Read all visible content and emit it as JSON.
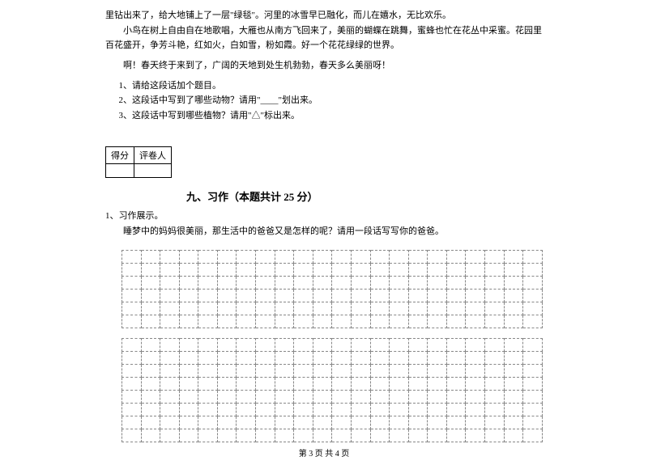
{
  "passage": {
    "line1": "里钻出来了，给大地铺上了一层\"绿毯\"。河里的冰雪早已融化，而儿在嬉水，无比欢乐。",
    "line2": "小鸟在树上自由自在地歌唱，大雁也从南方飞回来了，美丽的蝴蝶在跳舞，蜜蜂也忙在花丛中采蜜。花园里百花盛开，争芳斗艳，红如火，白如雪，粉如霞。好一个花花绿绿的世界。",
    "line3": "啊！春天终于来到了，广阔的天地到处生机勃勃，春天多么美丽呀！"
  },
  "questions": {
    "q1": "1、请给这段话加个题目。",
    "q2": "2、这段话中写到了哪些动物？请用\"____\"划出来。",
    "q3": "3、这段话中写到哪些植物？请用\"△\"标出来。"
  },
  "scoreBox": {
    "score": "得分",
    "reviewer": "评卷人"
  },
  "section": {
    "title": "九、习作（本题共计 25 分）"
  },
  "writing": {
    "label": "1、习作展示。",
    "desc": "睡梦中的妈妈很美丽，那生活中的爸爸又是怎样的呢？请用一段话写写你的爸爸。"
  },
  "grid": {
    "rows1": 6,
    "rows2": 8,
    "cols": 22,
    "cellBorderColor": "#888888"
  },
  "footer": "第 3 页 共 4 页"
}
